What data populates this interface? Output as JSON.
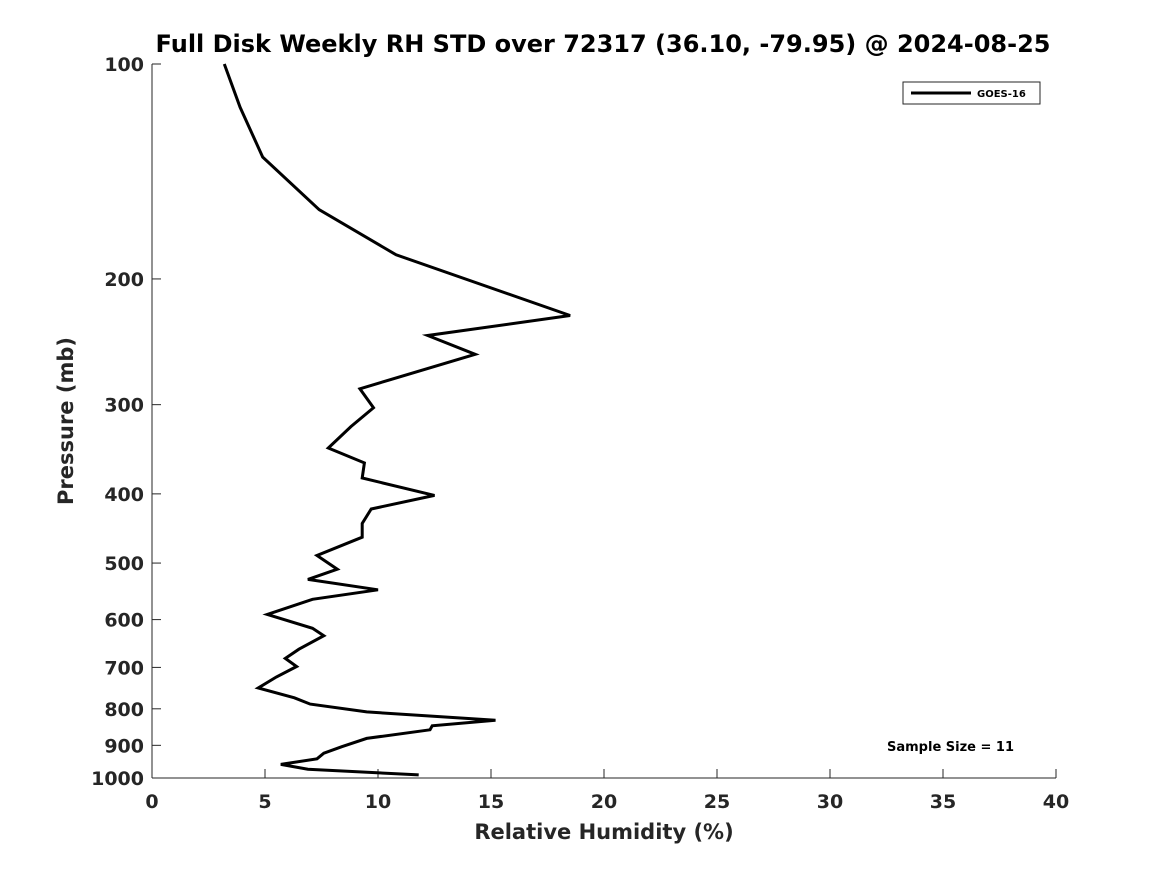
{
  "chart_data": {
    "type": "line",
    "title": "Full Disk Weekly RH STD over 72317 (36.10, -79.95) @ 2024-08-25",
    "xlabel": "Relative Humidity (%)",
    "ylabel": "Pressure (mb)",
    "xlim": [
      0,
      40
    ],
    "ylim": [
      1000,
      100
    ],
    "yscale": "log",
    "y_reversed": true,
    "xticks": [
      0,
      5,
      10,
      15,
      20,
      25,
      30,
      35,
      40
    ],
    "xtick_labels": [
      "0",
      "5",
      "10",
      "15",
      "20",
      "25",
      "30",
      "35",
      "40"
    ],
    "yticks": [
      100,
      200,
      300,
      400,
      500,
      600,
      700,
      800,
      900,
      1000
    ],
    "ytick_labels": [
      "100",
      "200",
      "300",
      "400",
      "500",
      "600",
      "700",
      "800",
      "900",
      "1000"
    ],
    "grid": false,
    "legend_position": "top-right",
    "annotation": "Sample Size = 11",
    "series": [
      {
        "name": "GOES-16",
        "color": "#000000",
        "x": [
          3.2,
          3.9,
          4.9,
          7.4,
          10.8,
          18.5,
          12.2,
          14.3,
          9.2,
          9.8,
          8.8,
          7.8,
          9.4,
          9.3,
          12.5,
          9.7,
          9.3,
          9.3,
          7.3,
          8.2,
          6.9,
          10.0,
          7.1,
          5.1,
          7.1,
          7.6,
          6.5,
          5.9,
          6.4,
          5.5,
          4.7,
          6.3,
          7.0,
          9.5,
          15.2,
          12.4,
          12.3,
          9.5,
          8.4,
          7.6,
          7.3,
          5.7,
          6.9,
          11.8
        ],
        "y": [
          100,
          115,
          135,
          160,
          185,
          225,
          240,
          255,
          285,
          303,
          322,
          345,
          362,
          380,
          402,
          420,
          440,
          460,
          488,
          510,
          527,
          545,
          562,
          590,
          617,
          632,
          660,
          680,
          698,
          722,
          748,
          772,
          788,
          808,
          830,
          845,
          856,
          880,
          904,
          923,
          940,
          957,
          972,
          990
        ]
      }
    ]
  }
}
